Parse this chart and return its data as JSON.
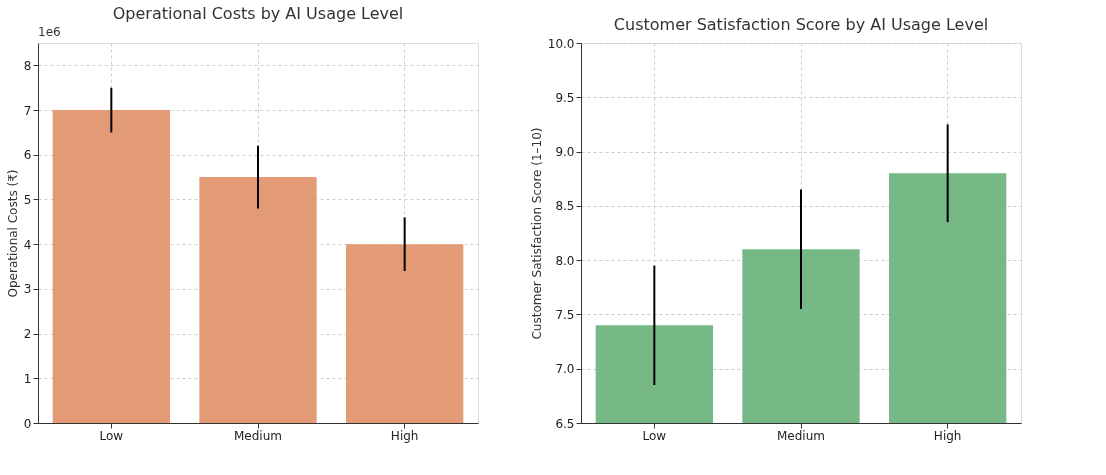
{
  "chart_data": [
    {
      "type": "bar",
      "title": "Operational Costs by AI Usage Level",
      "ylabel": "Operational Costs (₹)",
      "categories": [
        "Low",
        "Medium",
        "High"
      ],
      "values": [
        7,
        5.5,
        4
      ],
      "errors": [
        0.5,
        0.7,
        0.6
      ],
      "color": "#e39b77",
      "ylim": [
        0,
        8.5
      ],
      "yticks": [
        0,
        1,
        2,
        3,
        4,
        5,
        6,
        7,
        8
      ],
      "annotations": [
        "1e6"
      ],
      "grid": true
    },
    {
      "type": "bar",
      "title": "Customer Satisfaction Score by AI Usage Level",
      "ylabel": "Customer Satisfaction Score (1–10)",
      "categories": [
        "Low",
        "Medium",
        "High"
      ],
      "values": [
        7.4,
        8.1,
        8.8
      ],
      "errors": [
        0.55,
        0.55,
        0.45
      ],
      "color": "#76b886",
      "ylim": [
        6.5,
        10
      ],
      "yticks": [
        {
          "value": 6.5,
          "label": "6.5"
        },
        {
          "value": 7,
          "label": "7.0"
        },
        {
          "value": 7.5,
          "label": "7.5"
        },
        {
          "value": 8,
          "label": "8.0"
        },
        {
          "value": 8.5,
          "label": "8.5"
        },
        {
          "value": 9,
          "label": "9.0"
        },
        {
          "value": 9.5,
          "label": "9.5"
        },
        {
          "value": 10,
          "label": "10.0"
        }
      ],
      "grid": true
    }
  ]
}
